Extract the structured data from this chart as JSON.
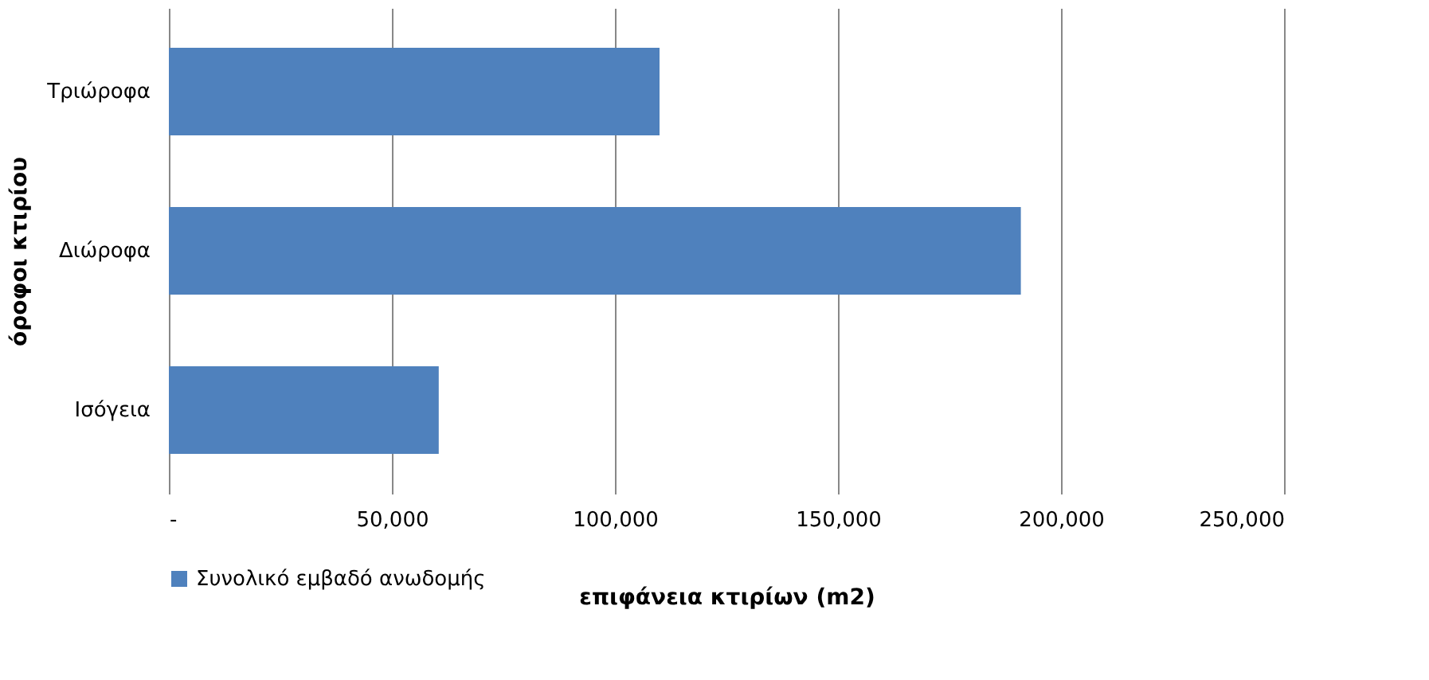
{
  "chart_data": {
    "type": "bar",
    "orientation": "horizontal",
    "categories": [
      "Τριώροφα",
      "Διώροφα",
      "Ισόγεια"
    ],
    "series": [
      {
        "name": "Συνολικό εμβαδό ανωδομής",
        "color": "#4f81bd",
        "values": [
          110000,
          191000,
          60500
        ]
      }
    ],
    "xlabel": "επιφάνεια κτιρίων (m2)",
    "ylabel": "όροφοι κτιρίου",
    "xlim": [
      0,
      250000
    ],
    "xticks": [
      {
        "value": 0,
        "label": "-"
      },
      {
        "value": 50000,
        "label": "50,000"
      },
      {
        "value": 100000,
        "label": "100,000"
      },
      {
        "value": 150000,
        "label": "150,000"
      },
      {
        "value": 200000,
        "label": "200,000"
      },
      {
        "value": 250000,
        "label": "250,000"
      }
    ],
    "grid": "x",
    "legend": "bottom"
  }
}
